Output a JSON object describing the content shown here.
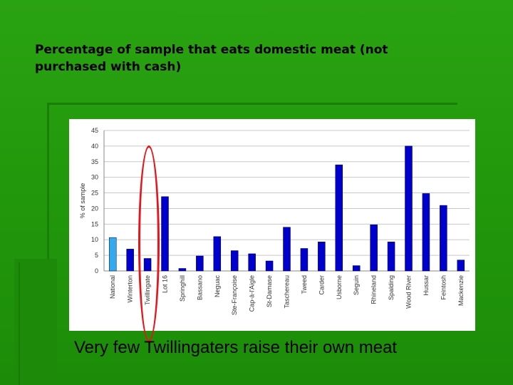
{
  "slide": {
    "title": "Percentage of sample that eats domestic meat (not purchased with cash)",
    "caption": "Very few Twillingaters raise their own meat"
  },
  "colors": {
    "background": "#22990c",
    "bar": "#0000cc",
    "highlight_bar": "#33aaee",
    "highlight_ellipse": "#e8141c"
  },
  "chart_data": {
    "type": "bar",
    "title": "",
    "xlabel": "",
    "ylabel": "% of sample",
    "ylim": [
      0,
      45
    ],
    "yticks": [
      0,
      5,
      10,
      15,
      20,
      25,
      30,
      35,
      40,
      45
    ],
    "grid": true,
    "categories": [
      "National",
      "Winterton",
      "Twillingate",
      "Lot 16",
      "Springhill",
      "Bassano",
      "Neguac",
      "Ste-Françoise",
      "Cap-à-l'Aigle",
      "St-Damase",
      "Taschereau",
      "Tweed",
      "Carder",
      "Usborne",
      "Seguin",
      "Rhineland",
      "Spalding",
      "Wood River",
      "Hussar",
      "Feintosh",
      "Mackenzie"
    ],
    "values": [
      10.7,
      7.0,
      4.0,
      23.8,
      0.8,
      4.8,
      11.0,
      6.5,
      5.5,
      3.2,
      14.0,
      7.2,
      9.3,
      34.0,
      1.7,
      14.8,
      9.3,
      40.0,
      24.8,
      21.0,
      3.5
    ],
    "highlight_index": 0,
    "circled_category": "Twillingate"
  }
}
